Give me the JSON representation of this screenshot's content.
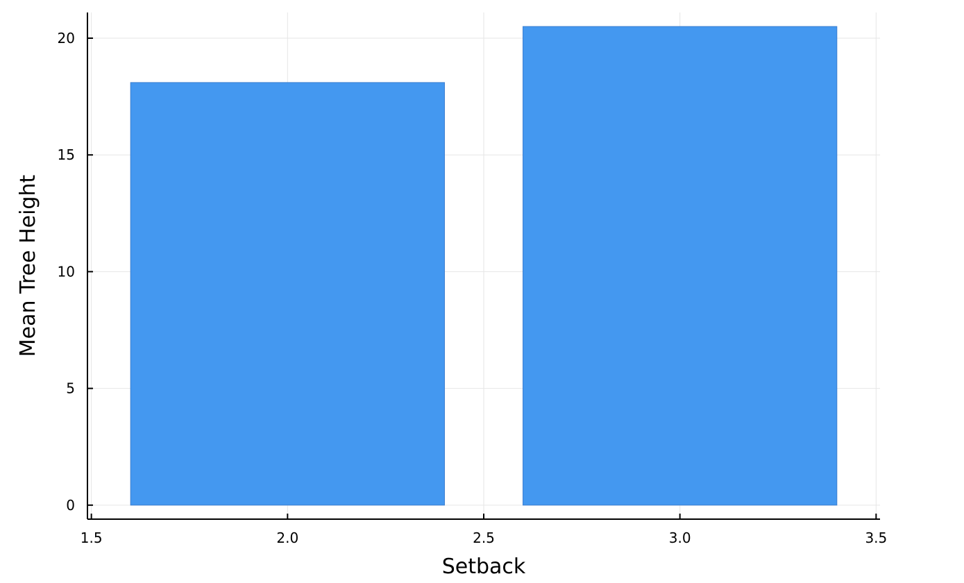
{
  "chart_data": {
    "type": "bar",
    "title": "",
    "xlabel": "Setback",
    "ylabel": "Mean Tree Height",
    "x_values": [
      2.0,
      3.0
    ],
    "values": [
      18.1,
      20.5
    ],
    "bar_width": 0.8,
    "xlim": [
      1.49,
      3.51
    ],
    "ylim": [
      -0.6,
      21.1
    ],
    "x_ticks": [
      1.5,
      2.0,
      2.5,
      3.0,
      3.5
    ],
    "x_tick_labels": [
      "1.5",
      "2.0",
      "2.5",
      "3.0",
      "3.5"
    ],
    "y_ticks": [
      0,
      5,
      10,
      15,
      20
    ],
    "y_tick_labels": [
      "0",
      "5",
      "10",
      "15",
      "20"
    ],
    "grid": true,
    "legend": "none",
    "bar_color": "#4498f0",
    "bar_edge_color": "#3a7ed0"
  }
}
